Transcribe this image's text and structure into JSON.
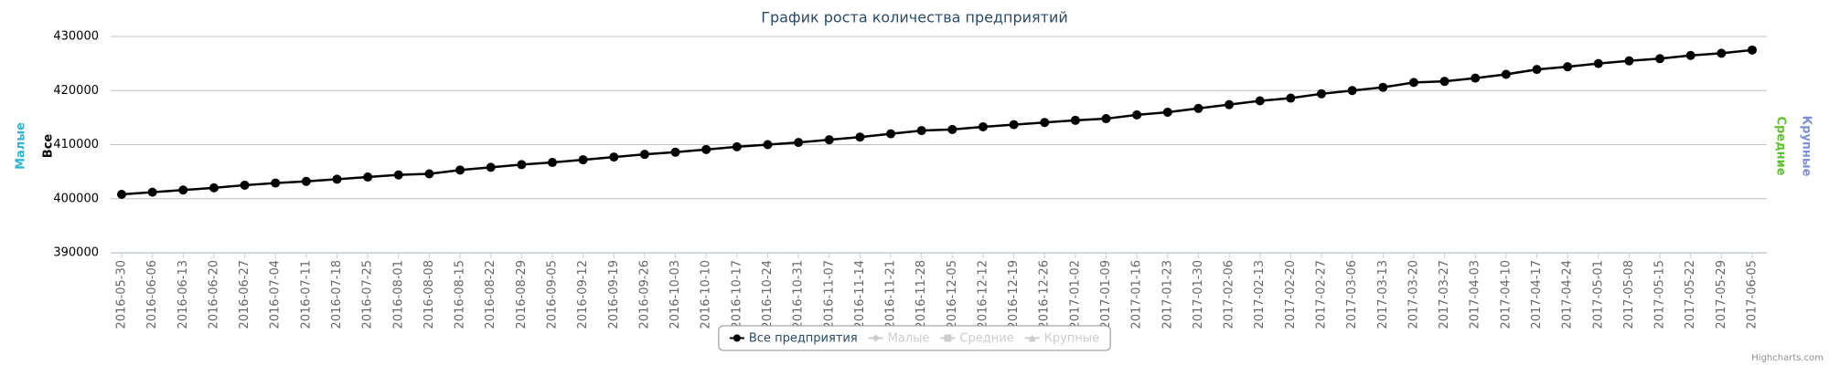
{
  "chart_data": {
    "type": "line",
    "title": "График роста количества предприятий",
    "categories": [
      "2016-05-30",
      "2016-06-06",
      "2016-06-13",
      "2016-06-20",
      "2016-06-27",
      "2016-07-04",
      "2016-07-11",
      "2016-07-18",
      "2016-07-25",
      "2016-08-01",
      "2016-08-08",
      "2016-08-15",
      "2016-08-22",
      "2016-08-29",
      "2016-09-05",
      "2016-09-12",
      "2016-09-19",
      "2016-09-26",
      "2016-10-03",
      "2016-10-10",
      "2016-10-17",
      "2016-10-24",
      "2016-10-31",
      "2016-11-07",
      "2016-11-14",
      "2016-11-21",
      "2016-11-28",
      "2016-12-05",
      "2016-12-12",
      "2016-12-19",
      "2016-12-26",
      "2017-01-02",
      "2017-01-09",
      "2017-01-16",
      "2017-01-23",
      "2017-01-30",
      "2017-02-06",
      "2017-02-13",
      "2017-02-20",
      "2017-02-27",
      "2017-03-06",
      "2017-03-13",
      "2017-03-20",
      "2017-03-27",
      "2017-04-03",
      "2017-04-10",
      "2017-04-17",
      "2017-04-24",
      "2017-05-01",
      "2017-05-08",
      "2017-05-15",
      "2017-05-22",
      "2017-05-29",
      "2017-06-05"
    ],
    "series": [
      {
        "name": "Все предприятия",
        "color": "#000000",
        "visible": true,
        "symbol": "circle",
        "values": [
          400800,
          401200,
          401600,
          402000,
          402500,
          402900,
          403200,
          403600,
          404000,
          404400,
          404600,
          405300,
          405800,
          406300,
          406700,
          407200,
          407700,
          408200,
          408600,
          409100,
          409600,
          410000,
          410400,
          410900,
          411400,
          412000,
          412600,
          412800,
          413300,
          413700,
          414100,
          414500,
          414800,
          415500,
          416000,
          416700,
          417400,
          418100,
          418600,
          419400,
          420000,
          420600,
          421500,
          421700,
          422300,
          423000,
          423900,
          424400,
          425000,
          425500,
          425900,
          426500,
          426900,
          427500
        ]
      },
      {
        "name": "Малые",
        "color": "#cccccc",
        "visible": false,
        "symbol": "diamond"
      },
      {
        "name": "Средние",
        "color": "#cccccc",
        "visible": false,
        "symbol": "square"
      },
      {
        "name": "Крупные",
        "color": "#cccccc",
        "visible": false,
        "symbol": "triangle"
      }
    ],
    "axis_titles": [
      {
        "text": "Малые",
        "color": "#2bb5d8",
        "side": "left"
      },
      {
        "text": "Все",
        "color": "#000000",
        "side": "left"
      },
      {
        "text": "Средние",
        "color": "#5fc22f",
        "side": "right"
      },
      {
        "text": "Крупные",
        "color": "#7c8fd6",
        "side": "right"
      }
    ],
    "ylim": [
      390000,
      430000
    ],
    "yticks": [
      390000,
      400000,
      410000,
      420000,
      430000
    ],
    "grid": true,
    "credit": "Highcharts.com"
  }
}
